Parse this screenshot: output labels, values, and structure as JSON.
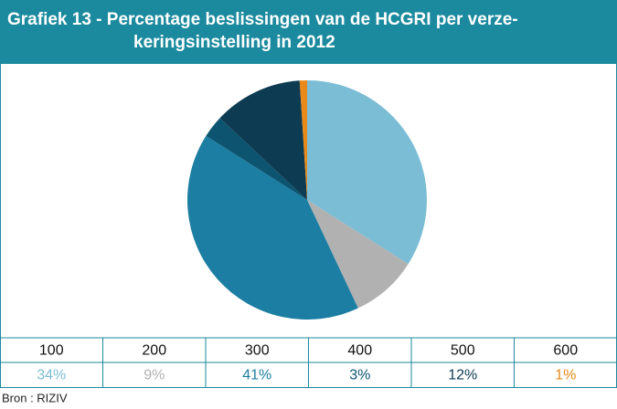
{
  "chart_data": {
    "type": "pie",
    "title": [
      "Grafiek 13 - Percentage beslissingen van de HCGRI per verze-",
      "keringsinstelling in 2012"
    ],
    "categories": [
      "100",
      "200",
      "300",
      "400",
      "500",
      "600"
    ],
    "values": [
      34,
      9,
      41,
      3,
      12,
      1
    ],
    "value_labels": [
      "34%",
      "9%",
      "41%",
      "3%",
      "12%",
      "1%"
    ],
    "colors": [
      "#7bbdd5",
      "#b1b1b1",
      "#1c7ea2",
      "#0c5470",
      "#0d3b51",
      "#e8891a"
    ],
    "source": "Bron : RIZIV"
  }
}
